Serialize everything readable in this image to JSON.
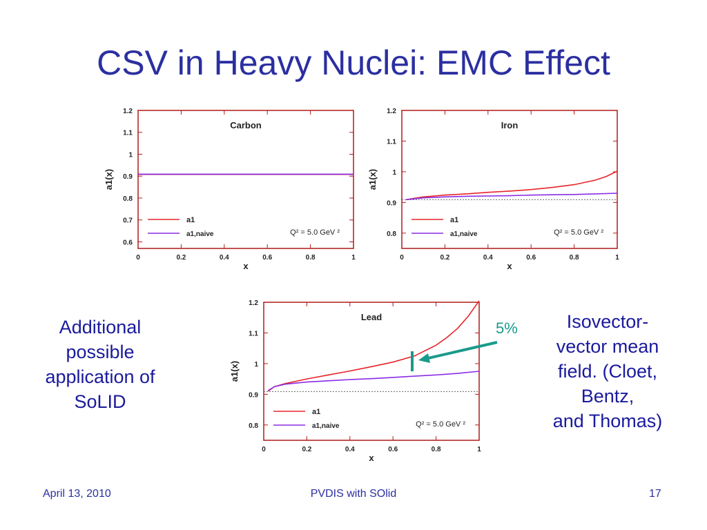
{
  "slide": {
    "title": "CSV in Heavy Nuclei: EMC Effect",
    "left_text": [
      "Additional",
      "possible",
      "application of",
      "SoLID"
    ],
    "right_text": [
      "Isovector-",
      "vector mean",
      "field.  (Cloet,",
      "Bentz,",
      "and Thomas)"
    ],
    "annotation_percent": "5%",
    "footer": {
      "date": "April 13, 2010",
      "center": "PVDIS with SOlid",
      "page": "17"
    },
    "colors": {
      "title": "#2b2fa0",
      "text": "#1a1a9c",
      "annotation": "#1a9a8a",
      "a1": "#e8232a",
      "a1_naive": "#8a2be2"
    }
  },
  "chart_data": [
    {
      "type": "line",
      "title": "Carbon",
      "xlabel": "x",
      "ylabel": "a1(x)",
      "xlim": [
        0,
        1
      ],
      "ylim": [
        0.57,
        1.2
      ],
      "xticks": [
        "0",
        "0.2",
        "0.4",
        "0.6",
        "0.8",
        "1"
      ],
      "yticks": [
        0.6,
        0.7,
        0.8,
        0.9,
        1,
        1.1,
        1.2
      ],
      "ytick_labels": [
        "0.6",
        "0.7",
        "0.8",
        "0.9",
        "1",
        "1.1",
        "1.2"
      ],
      "legend": [
        "a1",
        "a1,naive"
      ],
      "legend_position": "bottom-left",
      "annotation": "Q² = 5.0 GeV ²",
      "reference_line": null,
      "series": [
        {
          "name": "a1",
          "x": [
            0,
            0.2,
            0.4,
            0.6,
            0.8,
            1.0
          ],
          "y": [
            0.908,
            0.908,
            0.908,
            0.908,
            0.908,
            0.908
          ]
        },
        {
          "name": "a1,naive",
          "x": [
            0,
            0.2,
            0.4,
            0.6,
            0.8,
            1.0
          ],
          "y": [
            0.909,
            0.909,
            0.909,
            0.909,
            0.909,
            0.909
          ]
        }
      ]
    },
    {
      "type": "line",
      "title": "Iron",
      "xlabel": "x",
      "ylabel": "a1(x)",
      "xlim": [
        0,
        1
      ],
      "ylim": [
        0.75,
        1.2
      ],
      "xticks": [
        "0",
        "0.2",
        "0.4",
        "0.6",
        "0.8",
        "1"
      ],
      "yticks": [
        0.8,
        0.9,
        1,
        1.1,
        1.2
      ],
      "ytick_labels": [
        "0.8",
        "0.9",
        "1",
        "1.1",
        "1.2"
      ],
      "legend": [
        "a1",
        "a1,naive"
      ],
      "legend_position": "bottom-left",
      "annotation": "Q² = 5.0 GeV ²",
      "reference_line": 0.909,
      "series": [
        {
          "name": "a1",
          "x": [
            0.02,
            0.1,
            0.2,
            0.3,
            0.4,
            0.5,
            0.6,
            0.7,
            0.8,
            0.9,
            0.95,
            1.0
          ],
          "y": [
            0.909,
            0.918,
            0.924,
            0.928,
            0.933,
            0.937,
            0.942,
            0.949,
            0.958,
            0.973,
            0.985,
            1.002
          ]
        },
        {
          "name": "a1,naive",
          "x": [
            0.02,
            0.1,
            0.2,
            0.3,
            0.4,
            0.5,
            0.6,
            0.7,
            0.8,
            0.9,
            1.0
          ],
          "y": [
            0.909,
            0.915,
            0.918,
            0.92,
            0.921,
            0.922,
            0.924,
            0.925,
            0.926,
            0.928,
            0.93
          ]
        }
      ]
    },
    {
      "type": "line",
      "title": "Lead",
      "xlabel": "x",
      "ylabel": "a1(x)",
      "xlim": [
        0,
        1
      ],
      "ylim": [
        0.75,
        1.2
      ],
      "xticks": [
        "0",
        "0.2",
        "0.4",
        "0.6",
        "0.8",
        "1"
      ],
      "yticks": [
        0.8,
        0.9,
        1,
        1.1,
        1.2
      ],
      "ytick_labels": [
        "0.8",
        "0.9",
        "1",
        "1.1",
        "1.2"
      ],
      "legend": [
        "a1",
        "a1,naive"
      ],
      "legend_position": "bottom-left",
      "annotation": "Q² = 5.0 GeV ²",
      "reference_line": 0.909,
      "series": [
        {
          "name": "a1",
          "x": [
            0.02,
            0.05,
            0.1,
            0.2,
            0.3,
            0.4,
            0.5,
            0.6,
            0.7,
            0.8,
            0.85,
            0.9,
            0.95,
            1.0
          ],
          "y": [
            0.91,
            0.925,
            0.935,
            0.95,
            0.963,
            0.976,
            0.99,
            1.005,
            1.025,
            1.06,
            1.085,
            1.115,
            1.155,
            1.205
          ]
        },
        {
          "name": "a1,naive",
          "x": [
            0.02,
            0.05,
            0.1,
            0.2,
            0.3,
            0.4,
            0.5,
            0.6,
            0.7,
            0.8,
            0.9,
            1.0
          ],
          "y": [
            0.912,
            0.925,
            0.933,
            0.94,
            0.944,
            0.948,
            0.951,
            0.955,
            0.959,
            0.963,
            0.968,
            0.975
          ]
        }
      ]
    }
  ]
}
